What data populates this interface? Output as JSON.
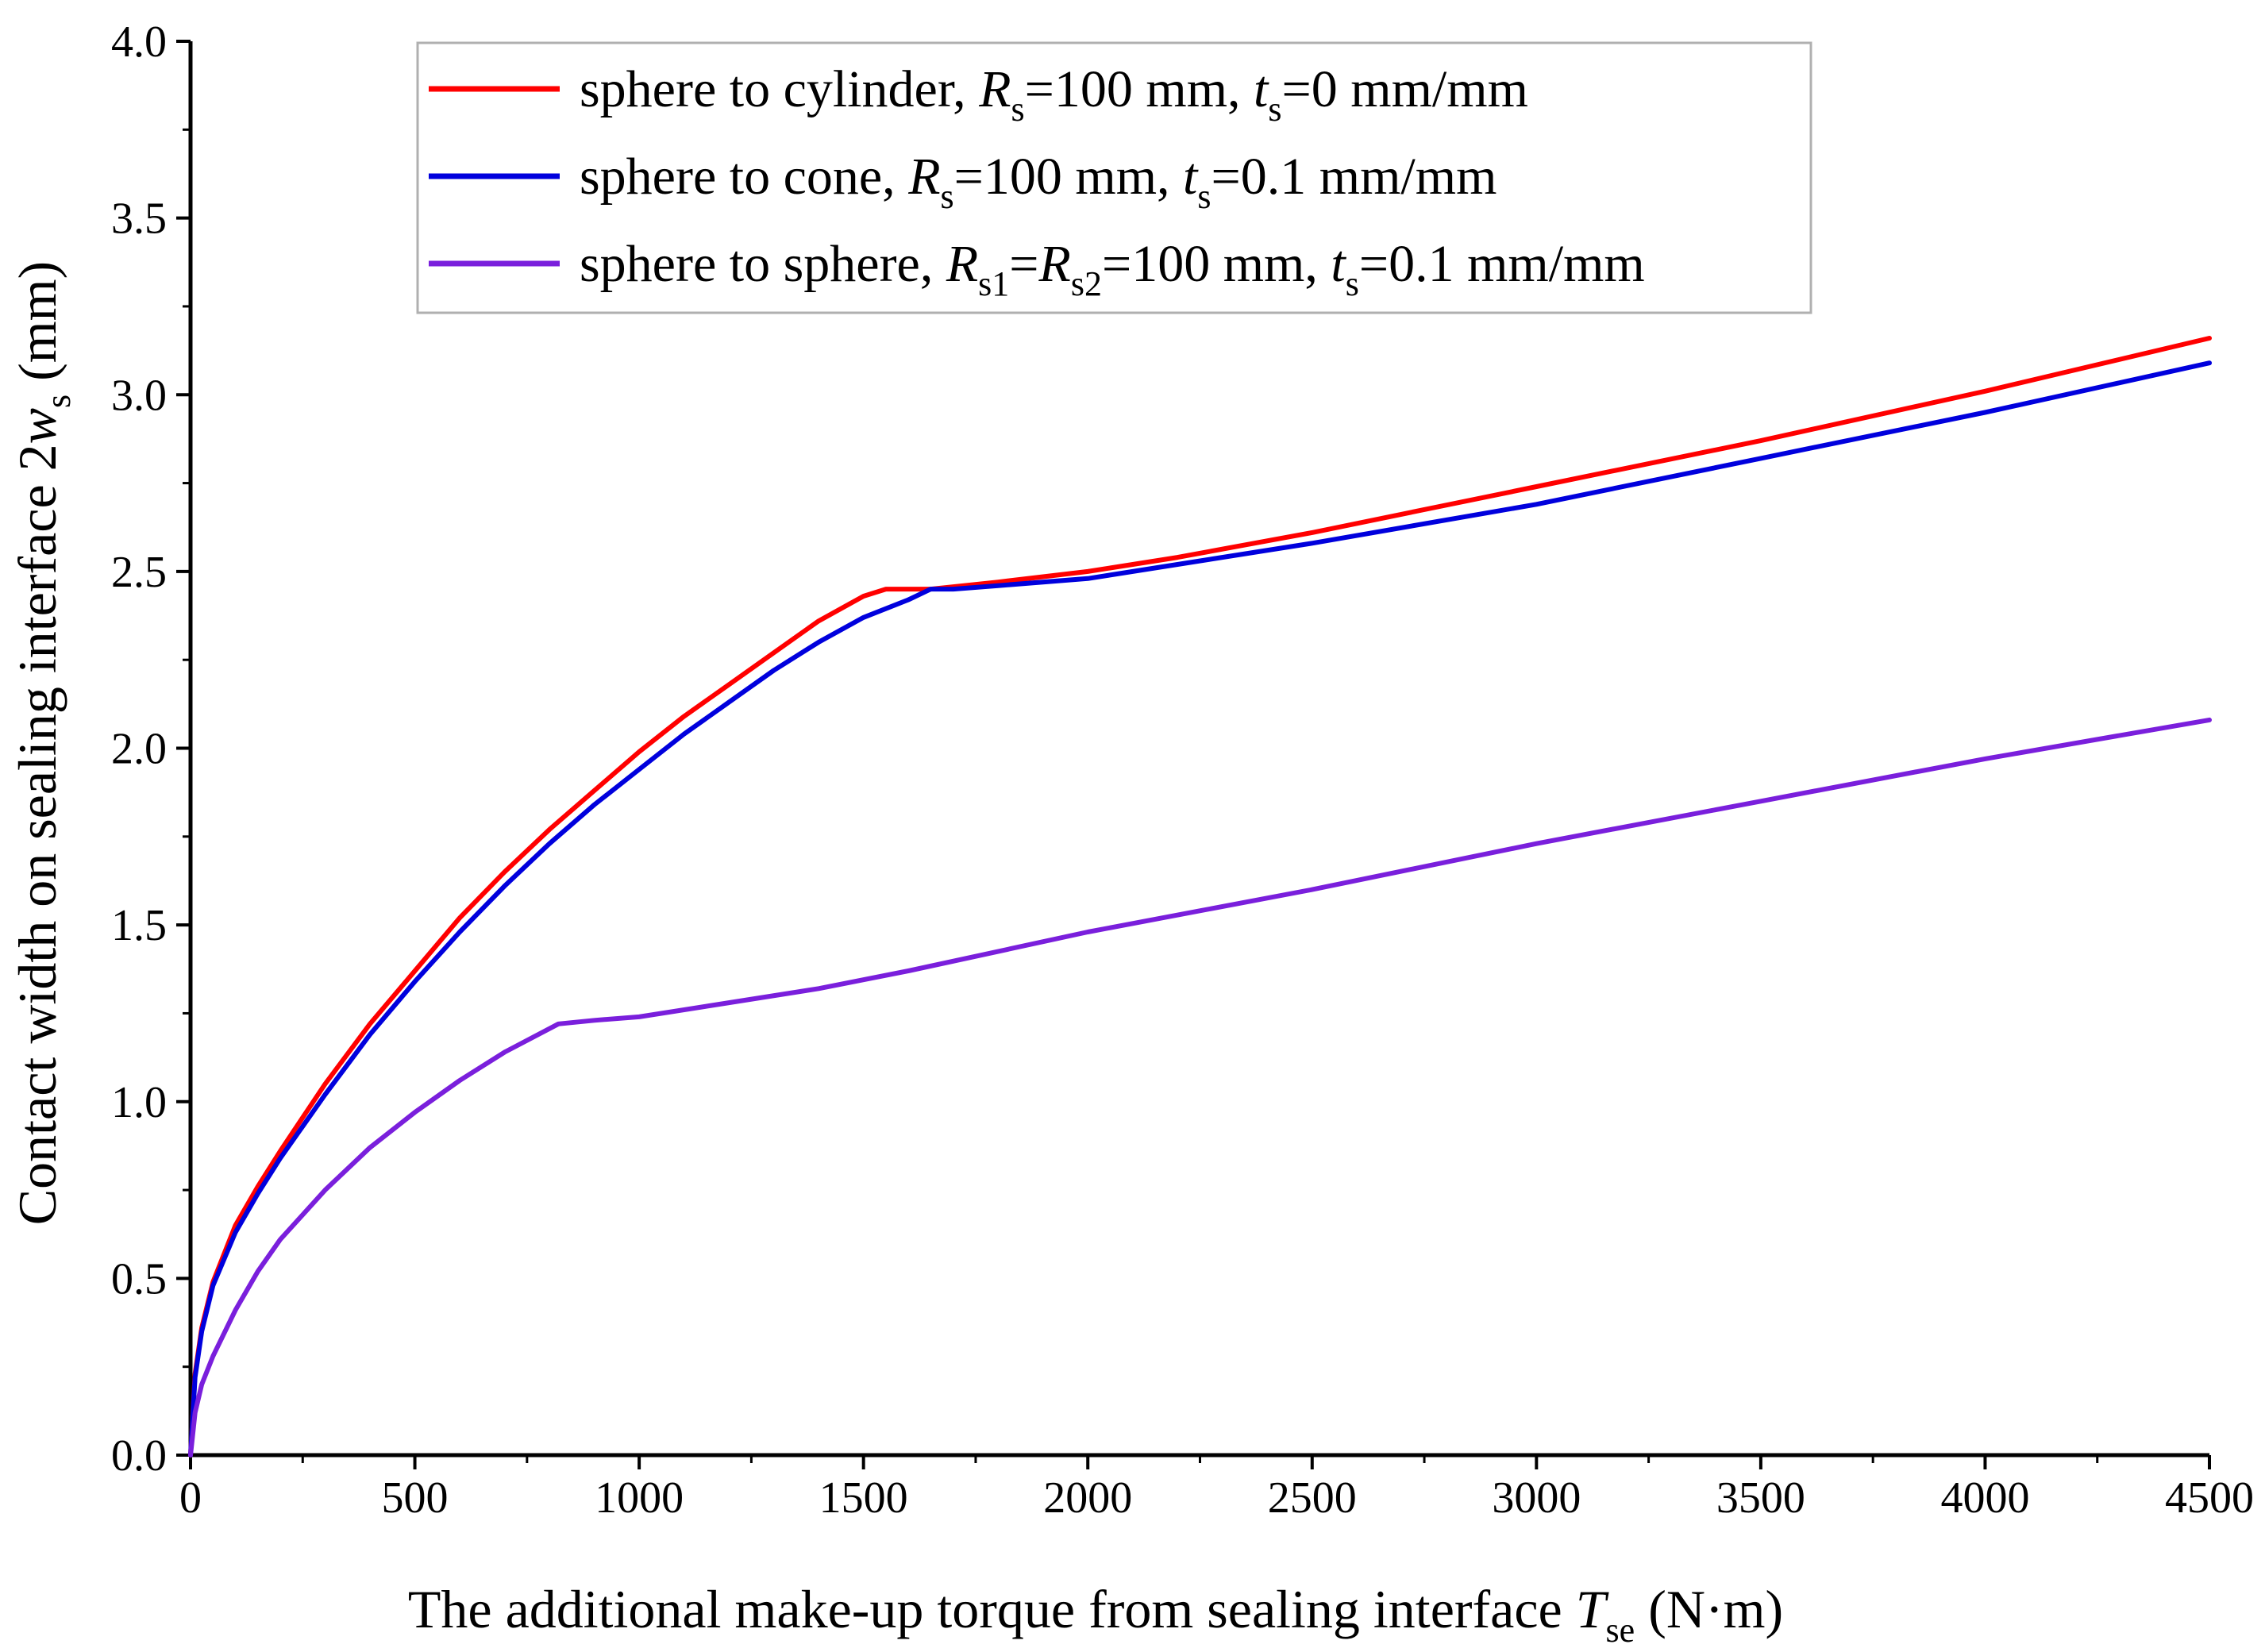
{
  "chart_data": {
    "type": "line",
    "xlim": [
      0,
      4500
    ],
    "ylim": [
      0.0,
      4.0
    ],
    "grid": false,
    "legend_position": "top-left",
    "x_ticks": [
      "0",
      "500",
      "1000",
      "1500",
      "2000",
      "2500",
      "3000",
      "3500",
      "4000",
      "4500"
    ],
    "y_ticks": [
      "0.0",
      "0.5",
      "1.0",
      "1.5",
      "2.0",
      "2.5",
      "3.0",
      "3.5",
      "4.0"
    ],
    "xlabel": {
      "text": "The additional make-up torque  from sealing interface ",
      "var": "T",
      "sub": "se",
      "unit": " (N·m)"
    },
    "ylabel": {
      "text": "Contact width on sealing interface 2",
      "var": "w",
      "sub": "s",
      "unit": " (mm)"
    },
    "series": [
      {
        "name": "sphere to cylinder, Rs=100 mm, ts=0 mm/mm",
        "label": {
          "prefix": "sphere to cylinder, ",
          "r1": "R",
          "r1_sub": "s",
          "r_mid": "",
          "r2": "",
          "r2_sub": "",
          "r_val": "=100 mm, ",
          "t": "t",
          "t_sub": "s",
          "t_val": "=0 mm/mm"
        },
        "color": "#ff0000",
        "x": [
          0,
          10,
          25,
          50,
          100,
          150,
          200,
          300,
          400,
          500,
          600,
          700,
          800,
          900,
          1000,
          1100,
          1200,
          1300,
          1400,
          1500,
          1550,
          1650,
          1800,
          2000,
          2200,
          2500,
          3000,
          3500,
          4000,
          4500
        ],
        "y": [
          0.0,
          0.23,
          0.36,
          0.49,
          0.65,
          0.76,
          0.86,
          1.05,
          1.22,
          1.37,
          1.52,
          1.65,
          1.77,
          1.88,
          1.99,
          2.09,
          2.18,
          2.27,
          2.36,
          2.43,
          2.45,
          2.45,
          2.47,
          2.5,
          2.54,
          2.61,
          2.74,
          2.87,
          3.01,
          3.16
        ]
      },
      {
        "name": "sphere to cone, Rs=100 mm, ts=0.1 mm/mm",
        "label": {
          "prefix": "sphere to cone, ",
          "r1": "R",
          "r1_sub": "s",
          "r_mid": "",
          "r2": "",
          "r2_sub": "",
          "r_val": "=100 mm, ",
          "t": "t",
          "t_sub": "s",
          "t_val": "=0.1 mm/mm"
        },
        "color": "#0000dd",
        "x": [
          0,
          10,
          25,
          50,
          100,
          150,
          200,
          300,
          400,
          500,
          600,
          700,
          800,
          900,
          1000,
          1100,
          1200,
          1300,
          1400,
          1500,
          1600,
          1650,
          1700,
          1800,
          2000,
          2200,
          2500,
          3000,
          3500,
          4000,
          4500
        ],
        "y": [
          0.0,
          0.22,
          0.35,
          0.48,
          0.63,
          0.74,
          0.84,
          1.02,
          1.19,
          1.34,
          1.48,
          1.61,
          1.73,
          1.84,
          1.94,
          2.04,
          2.13,
          2.22,
          2.3,
          2.37,
          2.42,
          2.45,
          2.45,
          2.46,
          2.48,
          2.52,
          2.58,
          2.69,
          2.82,
          2.95,
          3.09
        ]
      },
      {
        "name": "sphere to sphere, Rs1=Rs2=100 mm, ts=0.1 mm/mm",
        "label": {
          "prefix": "sphere to sphere, ",
          "r1": "R",
          "r1_sub": "s1",
          "r_mid": "=",
          "r2": "R",
          "r2_sub": "s2",
          "r_val": "=100 mm, ",
          "t": "t",
          "t_sub": "s",
          "t_val": "=0.1 mm/mm"
        },
        "color": "#7a1fdc",
        "x": [
          0,
          10,
          25,
          50,
          100,
          150,
          200,
          300,
          400,
          500,
          600,
          700,
          820,
          900,
          1000,
          1200,
          1400,
          1600,
          2000,
          2500,
          3000,
          3500,
          4000,
          4500
        ],
        "y": [
          0.0,
          0.12,
          0.2,
          0.28,
          0.41,
          0.52,
          0.61,
          0.75,
          0.87,
          0.97,
          1.06,
          1.14,
          1.22,
          1.23,
          1.24,
          1.28,
          1.32,
          1.37,
          1.48,
          1.6,
          1.73,
          1.85,
          1.97,
          2.08
        ]
      }
    ]
  }
}
